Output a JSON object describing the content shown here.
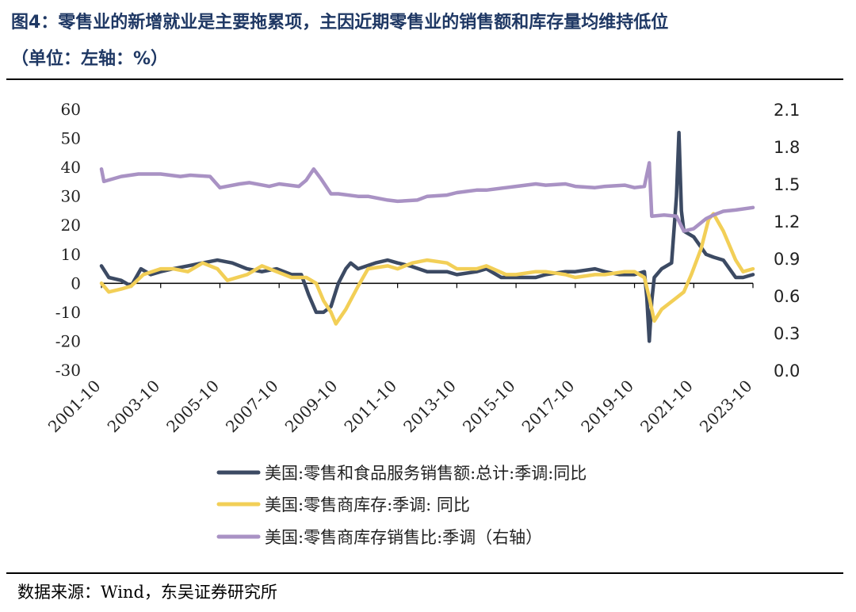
{
  "title": {
    "line1": "图4：零售业的新增就业是主要拖累项，主因近期零售业的销售额和库存量均维持低位",
    "line2": "（单位：左轴：%）"
  },
  "source": "数据来源：Wind，东吴证券研究所",
  "chart_data": {
    "type": "line",
    "x_ticks": [
      "2001-10",
      "2003-10",
      "2005-10",
      "2007-10",
      "2009-10",
      "2011-10",
      "2013-10",
      "2015-10",
      "2017-10",
      "2019-10",
      "2021-10",
      "2023-10"
    ],
    "y_left": {
      "min": -30,
      "max": 60,
      "ticks": [
        "60",
        "50",
        "40",
        "30",
        "20",
        "10",
        "0",
        "-10",
        "-20",
        "-30"
      ]
    },
    "y_right": {
      "min": 0.0,
      "max": 2.1,
      "ticks": [
        "2.1",
        "1.8",
        "1.5",
        "1.2",
        "0.9",
        "0.6",
        "0.3",
        "0.0"
      ]
    },
    "grid": false,
    "legend_position": "bottom",
    "series": [
      {
        "name": "美国:零售和食品服务销售额:总计:季调:同比",
        "axis": "left",
        "color": "#3c4a63",
        "points": [
          [
            "2001-10",
            6
          ],
          [
            "2002-01",
            2
          ],
          [
            "2002-06",
            1
          ],
          [
            "2002-10",
            -1
          ],
          [
            "2003-02",
            5
          ],
          [
            "2003-06",
            3
          ],
          [
            "2003-10",
            4
          ],
          [
            "2004-03",
            5
          ],
          [
            "2004-09",
            6
          ],
          [
            "2005-03",
            7
          ],
          [
            "2005-09",
            8
          ],
          [
            "2006-03",
            7
          ],
          [
            "2006-09",
            5
          ],
          [
            "2007-03",
            4
          ],
          [
            "2007-09",
            5
          ],
          [
            "2008-03",
            3
          ],
          [
            "2008-07",
            3
          ],
          [
            "2008-10",
            -4
          ],
          [
            "2009-01",
            -10
          ],
          [
            "2009-04",
            -10
          ],
          [
            "2009-07",
            -8
          ],
          [
            "2009-10",
            0
          ],
          [
            "2010-01",
            5
          ],
          [
            "2010-03",
            7
          ],
          [
            "2010-06",
            5
          ],
          [
            "2011-01",
            7
          ],
          [
            "2011-06",
            8
          ],
          [
            "2011-10",
            7
          ],
          [
            "2012-03",
            6
          ],
          [
            "2012-10",
            4
          ],
          [
            "2013-06",
            4
          ],
          [
            "2013-10",
            3
          ],
          [
            "2014-06",
            4
          ],
          [
            "2014-10",
            5
          ],
          [
            "2015-04",
            2
          ],
          [
            "2015-10",
            2
          ],
          [
            "2016-06",
            2
          ],
          [
            "2016-10",
            3
          ],
          [
            "2017-06",
            4
          ],
          [
            "2017-10",
            4
          ],
          [
            "2018-06",
            5
          ],
          [
            "2018-10",
            4
          ],
          [
            "2019-04",
            3
          ],
          [
            "2019-10",
            3
          ],
          [
            "2020-02",
            4
          ],
          [
            "2020-03",
            -5
          ],
          [
            "2020-04",
            -20
          ],
          [
            "2020-05",
            -6
          ],
          [
            "2020-06",
            2
          ],
          [
            "2020-09",
            5
          ],
          [
            "2021-01",
            7
          ],
          [
            "2021-03",
            30
          ],
          [
            "2021-04",
            52
          ],
          [
            "2021-05",
            25
          ],
          [
            "2021-06",
            18
          ],
          [
            "2021-10",
            16
          ],
          [
            "2022-03",
            10
          ],
          [
            "2022-06",
            9
          ],
          [
            "2022-10",
            8
          ],
          [
            "2023-03",
            2
          ],
          [
            "2023-06",
            2
          ],
          [
            "2023-10",
            3
          ]
        ]
      },
      {
        "name": "美国:零售商库存:季调: 同比",
        "axis": "left",
        "color": "#f2cf57",
        "points": [
          [
            "2001-10",
            0
          ],
          [
            "2002-01",
            -3
          ],
          [
            "2002-06",
            -2
          ],
          [
            "2002-10",
            -1
          ],
          [
            "2003-03",
            3
          ],
          [
            "2003-10",
            5
          ],
          [
            "2004-03",
            5
          ],
          [
            "2004-09",
            4
          ],
          [
            "2005-03",
            7
          ],
          [
            "2005-09",
            5
          ],
          [
            "2006-01",
            1
          ],
          [
            "2006-09",
            3
          ],
          [
            "2007-03",
            6
          ],
          [
            "2007-09",
            4
          ],
          [
            "2008-03",
            2
          ],
          [
            "2008-09",
            2
          ],
          [
            "2009-01",
            0
          ],
          [
            "2009-04",
            -6
          ],
          [
            "2009-07",
            -10
          ],
          [
            "2009-09",
            -14
          ],
          [
            "2010-01",
            -9
          ],
          [
            "2010-06",
            -1
          ],
          [
            "2010-10",
            5
          ],
          [
            "2011-06",
            6
          ],
          [
            "2011-10",
            5
          ],
          [
            "2012-04",
            7
          ],
          [
            "2012-10",
            8
          ],
          [
            "2013-06",
            7
          ],
          [
            "2013-10",
            5
          ],
          [
            "2014-06",
            5
          ],
          [
            "2014-10",
            6
          ],
          [
            "2015-06",
            3
          ],
          [
            "2015-10",
            3
          ],
          [
            "2016-06",
            4
          ],
          [
            "2016-10",
            4
          ],
          [
            "2017-06",
            3
          ],
          [
            "2017-10",
            2
          ],
          [
            "2018-06",
            3
          ],
          [
            "2018-10",
            3
          ],
          [
            "2019-06",
            4
          ],
          [
            "2019-10",
            4
          ],
          [
            "2020-02",
            2
          ],
          [
            "2020-04",
            -5
          ],
          [
            "2020-06",
            -13
          ],
          [
            "2020-09",
            -9
          ],
          [
            "2021-03",
            -5
          ],
          [
            "2021-06",
            -3
          ],
          [
            "2021-09",
            3
          ],
          [
            "2022-01",
            12
          ],
          [
            "2022-04",
            22
          ],
          [
            "2022-06",
            24
          ],
          [
            "2022-10",
            18
          ],
          [
            "2023-03",
            8
          ],
          [
            "2023-06",
            4
          ],
          [
            "2023-10",
            5
          ]
        ]
      },
      {
        "name": "美国:零售商库存销售比:季调（右轴）",
        "axis": "right",
        "color": "#a992c4",
        "points": [
          [
            "2001-10",
            1.62
          ],
          [
            "2001-11",
            1.52
          ],
          [
            "2002-06",
            1.56
          ],
          [
            "2003-01",
            1.58
          ],
          [
            "2003-10",
            1.58
          ],
          [
            "2004-06",
            1.56
          ],
          [
            "2004-10",
            1.57
          ],
          [
            "2005-06",
            1.56
          ],
          [
            "2005-10",
            1.47
          ],
          [
            "2006-06",
            1.5
          ],
          [
            "2006-10",
            1.51
          ],
          [
            "2007-06",
            1.48
          ],
          [
            "2007-10",
            1.5
          ],
          [
            "2008-06",
            1.48
          ],
          [
            "2008-09",
            1.53
          ],
          [
            "2008-12",
            1.62
          ],
          [
            "2009-03",
            1.54
          ],
          [
            "2009-07",
            1.42
          ],
          [
            "2009-10",
            1.42
          ],
          [
            "2010-06",
            1.4
          ],
          [
            "2010-10",
            1.4
          ],
          [
            "2011-06",
            1.37
          ],
          [
            "2011-10",
            1.36
          ],
          [
            "2012-06",
            1.37
          ],
          [
            "2012-10",
            1.4
          ],
          [
            "2013-06",
            1.41
          ],
          [
            "2013-10",
            1.43
          ],
          [
            "2014-06",
            1.45
          ],
          [
            "2014-10",
            1.45
          ],
          [
            "2015-06",
            1.47
          ],
          [
            "2015-10",
            1.48
          ],
          [
            "2016-06",
            1.5
          ],
          [
            "2016-10",
            1.49
          ],
          [
            "2017-06",
            1.5
          ],
          [
            "2017-10",
            1.48
          ],
          [
            "2018-06",
            1.47
          ],
          [
            "2018-10",
            1.48
          ],
          [
            "2019-06",
            1.49
          ],
          [
            "2019-10",
            1.47
          ],
          [
            "2020-02",
            1.48
          ],
          [
            "2020-04",
            1.67
          ],
          [
            "2020-05",
            1.24
          ],
          [
            "2020-10",
            1.25
          ],
          [
            "2021-03",
            1.24
          ],
          [
            "2021-06",
            1.12
          ],
          [
            "2021-10",
            1.14
          ],
          [
            "2022-03",
            1.22
          ],
          [
            "2022-06",
            1.25
          ],
          [
            "2022-10",
            1.28
          ],
          [
            "2023-03",
            1.29
          ],
          [
            "2023-10",
            1.31
          ]
        ]
      }
    ]
  }
}
